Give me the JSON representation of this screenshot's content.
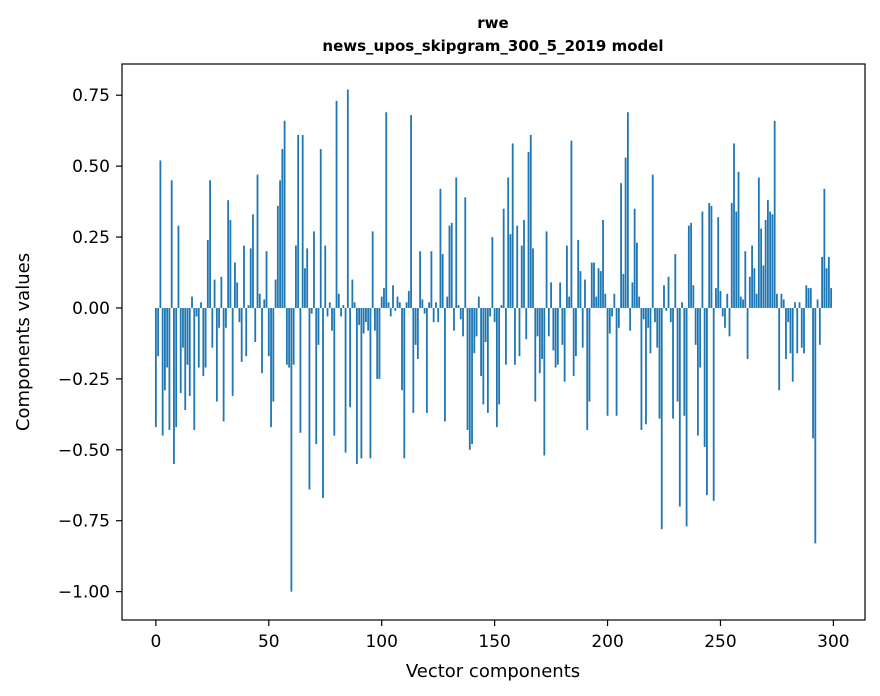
{
  "chart_data": {
    "type": "bar",
    "title": "rwe",
    "subtitle": "news_upos_skipgram_300_5_2019 model",
    "xlabel": "Vector components",
    "ylabel": "Components values",
    "xlim": [
      -15,
      314
    ],
    "ylim": [
      -1.1,
      0.86
    ],
    "xticks": [
      0,
      50,
      100,
      150,
      200,
      250,
      300
    ],
    "xtick_labels": [
      "0",
      "50",
      "100",
      "150",
      "200",
      "250",
      "300"
    ],
    "yticks": [
      -1.0,
      -0.75,
      -0.5,
      -0.25,
      0.0,
      0.25,
      0.5,
      0.75
    ],
    "ytick_labels": [
      "−1.00",
      "−0.75",
      "−0.50",
      "−0.25",
      "0.00",
      "0.25",
      "0.50",
      "0.75"
    ],
    "bar_color": "#1f77b4",
    "grid": false,
    "values": [
      -0.42,
      -0.17,
      0.52,
      -0.45,
      -0.29,
      -0.21,
      -0.43,
      0.45,
      -0.55,
      -0.42,
      0.29,
      -0.3,
      -0.14,
      -0.36,
      -0.2,
      -0.31,
      0.04,
      -0.43,
      -0.03,
      -0.21,
      0.02,
      -0.24,
      -0.21,
      0.24,
      0.45,
      -0.14,
      0.1,
      -0.33,
      -0.07,
      0.11,
      -0.4,
      -0.07,
      0.38,
      0.31,
      -0.31,
      0.16,
      0.09,
      -0.05,
      -0.19,
      0.22,
      -0.17,
      0.01,
      0.21,
      0.33,
      -0.12,
      0.47,
      0.05,
      -0.23,
      0.03,
      0.2,
      -0.17,
      -0.42,
      -0.33,
      0.1,
      0.36,
      0.45,
      0.56,
      0.66,
      -0.2,
      -0.21,
      -1.0,
      -0.2,
      0.22,
      0.61,
      -0.44,
      0.61,
      0.14,
      0.21,
      -0.64,
      -0.02,
      0.27,
      -0.48,
      -0.13,
      0.56,
      -0.67,
      0.22,
      -0.03,
      0.02,
      -0.08,
      -0.45,
      0.73,
      0.05,
      -0.03,
      0.01,
      -0.51,
      0.77,
      -0.35,
      0.1,
      0.02,
      -0.55,
      -0.06,
      -0.53,
      -0.09,
      -0.05,
      -0.08,
      -0.53,
      0.27,
      -0.08,
      -0.25,
      -0.25,
      0.04,
      0.07,
      0.69,
      0.02,
      -0.03,
      0.08,
      -0.01,
      0.04,
      0.02,
      -0.29,
      -0.53,
      0.02,
      0.06,
      0.68,
      -0.37,
      -0.13,
      -0.18,
      0.2,
      0.03,
      -0.02,
      -0.37,
      0.02,
      0.2,
      -0.05,
      0.02,
      -0.05,
      0.42,
      0.19,
      -0.4,
      0.04,
      0.29,
      0.3,
      -0.08,
      0.46,
      0.01,
      -0.04,
      -0.1,
      0.39,
      -0.43,
      -0.5,
      -0.48,
      -0.16,
      -0.1,
      0.04,
      -0.24,
      -0.34,
      -0.12,
      -0.37,
      -0.03,
      0.25,
      -0.05,
      -0.42,
      -0.34,
      0.01,
      0.35,
      -0.2,
      0.46,
      0.26,
      0.58,
      -0.2,
      0.29,
      -0.17,
      0.22,
      0.31,
      -0.11,
      0.55,
      0.61,
      0.21,
      -0.33,
      -0.1,
      -0.23,
      -0.18,
      -0.52,
      0.27,
      -0.1,
      0.09,
      -0.15,
      -0.21,
      -0.2,
      0.09,
      -0.13,
      -0.26,
      0.22,
      0.04,
      0.59,
      -0.24,
      -0.17,
      0.24,
      0.13,
      -0.14,
      0.1,
      -0.43,
      -0.33,
      0.16,
      0.16,
      0.04,
      0.14,
      0.13,
      0.31,
      0.05,
      -0.38,
      -0.09,
      -0.03,
      0.05,
      -0.38,
      -0.07,
      0.44,
      0.12,
      0.53,
      0.69,
      -0.08,
      0.09,
      0.35,
      0.23,
      0.04,
      -0.43,
      -0.04,
      -0.41,
      -0.07,
      -0.16,
      0.47,
      -0.05,
      -0.14,
      -0.39,
      -0.78,
      0.08,
      -0.01,
      0.11,
      -0.05,
      -0.39,
      0.19,
      -0.33,
      -0.7,
      0.02,
      -0.38,
      -0.77,
      0.29,
      0.3,
      0.08,
      -0.13,
      -0.45,
      -0.21,
      0.34,
      -0.49,
      -0.66,
      0.37,
      0.36,
      -0.68,
      0.07,
      0.32,
      0.06,
      -0.03,
      -0.07,
      0.05,
      -0.1,
      0.37,
      0.58,
      0.34,
      0.48,
      0.04,
      0.03,
      0.2,
      -0.18,
      0.11,
      0.22,
      0.14,
      0.05,
      0.46,
      0.28,
      0.15,
      0.31,
      0.38,
      0.34,
      0.33,
      0.66,
      0.05,
      -0.29,
      0.05,
      0.03,
      -0.18,
      -0.05,
      -0.16,
      -0.26,
      0.02,
      -0.16,
      0.02,
      -0.14,
      -0.16,
      0.08,
      0.07,
      0.07,
      -0.46,
      -0.83,
      0.03,
      -0.13,
      0.18,
      0.42,
      0.14,
      0.18,
      0.07
    ]
  }
}
